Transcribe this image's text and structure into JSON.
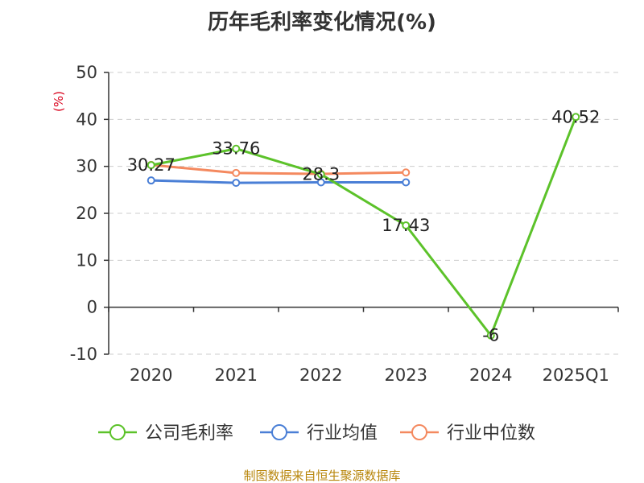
{
  "chart_data": {
    "type": "line",
    "title": "历年毛利率变化情况(%)",
    "ylabel": "(%)",
    "xlabel": "",
    "categories": [
      "2020",
      "2021",
      "2022",
      "2023",
      "2024",
      "2025Q1"
    ],
    "ylim": [
      -10,
      50
    ],
    "yticks": [
      -10,
      0,
      10,
      20,
      30,
      40,
      50
    ],
    "grid": true,
    "legend_position": "bottom",
    "series": [
      {
        "name": "公司毛利率",
        "color": "#5cc22a",
        "values": [
          30.27,
          33.76,
          28.3,
          17.43,
          -6,
          40.52
        ],
        "labels": [
          "30.27",
          "33.76",
          "28.3",
          "17.43",
          "-6",
          "40.52"
        ]
      },
      {
        "name": "行业均值",
        "color": "#4a7fd6",
        "values": [
          27.0,
          26.5,
          26.6,
          26.6,
          null,
          null
        ]
      },
      {
        "name": "行业中位数",
        "color": "#f4895f",
        "values": [
          30.3,
          28.6,
          28.4,
          28.7,
          null,
          null
        ]
      }
    ],
    "source": "制图数据来自恒生聚源数据库"
  }
}
